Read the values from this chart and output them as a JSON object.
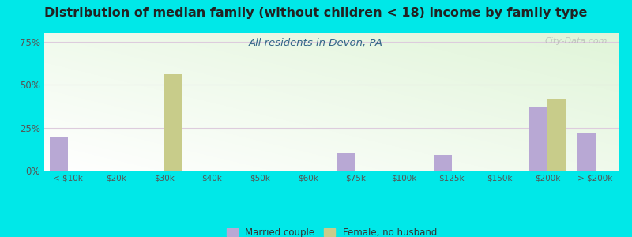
{
  "title": "Distribution of median family (without children < 18) income by family type",
  "subtitle": "All residents in Devon, PA",
  "categories": [
    "< $10k",
    "$20k",
    "$30k",
    "$40k",
    "$50k",
    "$60k",
    "$75k",
    "$100k",
    "$125k",
    "$150k",
    "$200k",
    "> $200k"
  ],
  "married_couple": [
    20,
    0,
    0,
    0,
    0,
    0,
    10,
    0,
    9,
    0,
    37,
    22
  ],
  "female_no_husband": [
    0,
    0,
    56,
    0,
    0,
    0,
    0,
    0,
    0,
    0,
    42,
    0
  ],
  "married_color": "#b8a8d4",
  "female_color": "#c8cc8a",
  "background_color": "#00e8e8",
  "ylim": [
    0,
    80
  ],
  "yticks": [
    0,
    25,
    50,
    75
  ],
  "ytick_labels": [
    "0%",
    "25%",
    "50%",
    "75%"
  ],
  "title_fontsize": 11.5,
  "subtitle_fontsize": 9.5,
  "subtitle_color": "#336688",
  "bar_width": 0.38,
  "legend_married": "Married couple",
  "legend_female": "Female, no husband",
  "watermark": "City-Data.com",
  "grid_color": "#ddccdd",
  "tick_color": "#555555",
  "title_color": "#222222"
}
